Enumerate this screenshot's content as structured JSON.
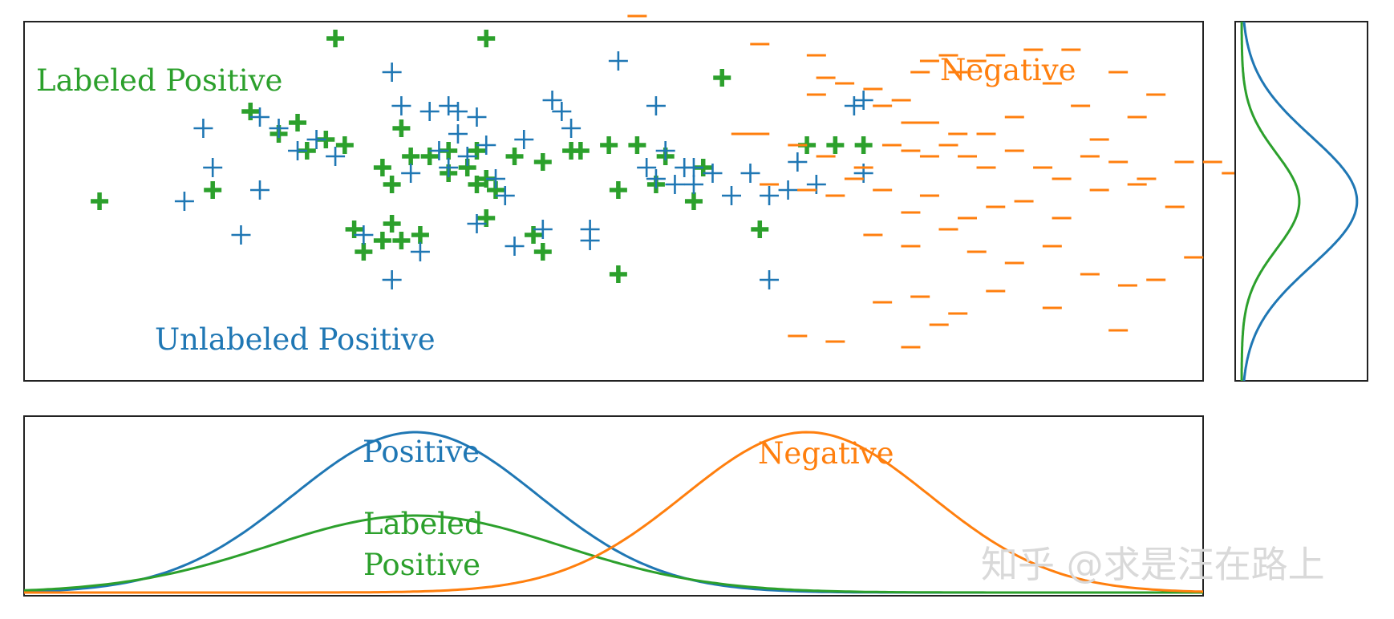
{
  "chart_data": [
    {
      "panel": "scatter",
      "type": "scatter",
      "title": "",
      "xlabel": "",
      "ylabel": "",
      "xlim": [
        -3,
        9.5
      ],
      "ylim": [
        -3.2,
        3.2
      ],
      "grid": false,
      "colors": {
        "labeled": "#2ca02c",
        "unlabeled": "#1f77b4",
        "negative": "#ff7f0e"
      },
      "annotations": {
        "labeled": "Labeled Positive",
        "unlabeled": "Unlabeled Positive",
        "negative": "Negative"
      },
      "series": [
        {
          "name": "Labeled Positive",
          "marker": "bold-plus",
          "points": [
            [
              -2.2,
              0.0
            ],
            [
              -1.0,
              0.2
            ],
            [
              -0.6,
              1.6
            ],
            [
              -0.3,
              1.2
            ],
            [
              -0.1,
              1.4
            ],
            [
              0.0,
              0.9
            ],
            [
              0.2,
              1.1
            ],
            [
              0.4,
              1.0
            ],
            [
              0.5,
              -0.5
            ],
            [
              0.8,
              0.6
            ],
            [
              1.0,
              1.3
            ],
            [
              0.6,
              -0.9
            ],
            [
              0.8,
              -0.7
            ],
            [
              0.9,
              0.3
            ],
            [
              0.9,
              -0.4
            ],
            [
              1.0,
              -0.7
            ],
            [
              1.1,
              0.8
            ],
            [
              1.2,
              -0.6
            ],
            [
              1.3,
              0.8
            ],
            [
              1.5,
              0.9
            ],
            [
              1.5,
              0.5
            ],
            [
              1.7,
              0.6
            ],
            [
              1.8,
              0.3
            ],
            [
              1.8,
              0.9
            ],
            [
              1.9,
              0.4
            ],
            [
              1.9,
              -0.3
            ],
            [
              2.0,
              0.2
            ],
            [
              2.2,
              0.8
            ],
            [
              2.4,
              -0.6
            ],
            [
              2.5,
              0.7
            ],
            [
              2.5,
              -0.9
            ],
            [
              2.8,
              0.9
            ],
            [
              2.9,
              0.9
            ],
            [
              3.2,
              1.0
            ],
            [
              3.3,
              0.2
            ],
            [
              3.3,
              -1.3
            ],
            [
              3.5,
              1.0
            ],
            [
              3.7,
              0.3
            ],
            [
              3.8,
              0.8
            ],
            [
              4.1,
              0.0
            ],
            [
              4.2,
              0.6
            ],
            [
              4.4,
              2.2
            ],
            [
              4.8,
              -0.5
            ],
            [
              5.3,
              1.0
            ],
            [
              5.6,
              1.0
            ],
            [
              5.9,
              1.0
            ],
            [
              0.3,
              2.9
            ],
            [
              1.9,
              2.9
            ]
          ]
        },
        {
          "name": "Unlabeled Positive",
          "marker": "plus",
          "points": [
            [
              -1.3,
              0.0
            ],
            [
              -1.1,
              1.3
            ],
            [
              -1.0,
              0.6
            ],
            [
              -0.7,
              -0.6
            ],
            [
              -0.5,
              1.5
            ],
            [
              -0.5,
              0.2
            ],
            [
              -0.3,
              1.3
            ],
            [
              -0.1,
              0.9
            ],
            [
              0.1,
              1.1
            ],
            [
              0.3,
              0.8
            ],
            [
              0.6,
              -0.6
            ],
            [
              0.9,
              -1.4
            ],
            [
              0.9,
              2.3
            ],
            [
              1.0,
              1.7
            ],
            [
              1.1,
              0.5
            ],
            [
              1.2,
              -0.9
            ],
            [
              1.3,
              1.6
            ],
            [
              1.4,
              0.9
            ],
            [
              1.5,
              1.7
            ],
            [
              1.6,
              1.2
            ],
            [
              1.8,
              1.5
            ],
            [
              1.8,
              -0.4
            ],
            [
              1.9,
              1.0
            ],
            [
              2.0,
              0.4
            ],
            [
              2.1,
              0.1
            ],
            [
              2.2,
              -0.8
            ],
            [
              2.3,
              1.1
            ],
            [
              2.5,
              -0.5
            ],
            [
              2.6,
              1.8
            ],
            [
              2.7,
              1.6
            ],
            [
              2.8,
              1.3
            ],
            [
              3.0,
              -0.5
            ],
            [
              3.3,
              2.5
            ],
            [
              3.6,
              0.6
            ],
            [
              3.7,
              1.7
            ],
            [
              3.7,
              0.4
            ],
            [
              3.8,
              0.9
            ],
            [
              3.9,
              0.3
            ],
            [
              4.0,
              0.6
            ],
            [
              4.1,
              0.3
            ],
            [
              4.1,
              0.6
            ],
            [
              4.3,
              0.5
            ],
            [
              4.5,
              0.1
            ],
            [
              4.7,
              0.5
            ],
            [
              4.9,
              0.1
            ],
            [
              4.9,
              -1.4
            ],
            [
              5.1,
              0.2
            ],
            [
              5.2,
              0.7
            ],
            [
              5.4,
              0.3
            ],
            [
              5.8,
              1.7
            ],
            [
              5.9,
              1.8
            ],
            [
              5.9,
              0.5
            ],
            [
              1.6,
              1.6
            ],
            [
              1.5,
              0.6
            ],
            [
              3.0,
              -0.7
            ],
            [
              1.7,
              0.8
            ]
          ]
        },
        {
          "name": "Negative",
          "marker": "dash",
          "points": [
            [
              3.5,
              3.3
            ],
            [
              4.8,
              2.8
            ],
            [
              5.4,
              2.6
            ],
            [
              5.5,
              2.2
            ],
            [
              5.7,
              2.1
            ],
            [
              5.4,
              1.9
            ],
            [
              6.0,
              2.0
            ],
            [
              6.1,
              1.7
            ],
            [
              6.3,
              1.8
            ],
            [
              6.5,
              2.3
            ],
            [
              6.6,
              2.5
            ],
            [
              6.8,
              2.6
            ],
            [
              6.9,
              2.3
            ],
            [
              7.1,
              2.5
            ],
            [
              7.3,
              2.6
            ],
            [
              7.7,
              2.7
            ],
            [
              6.4,
              1.4
            ],
            [
              6.6,
              1.4
            ],
            [
              6.9,
              1.2
            ],
            [
              7.2,
              1.2
            ],
            [
              7.5,
              1.5
            ],
            [
              7.9,
              2.1
            ],
            [
              8.2,
              1.7
            ],
            [
              8.4,
              1.1
            ],
            [
              8.6,
              2.3
            ],
            [
              9.0,
              1.9
            ],
            [
              4.6,
              1.2
            ],
            [
              4.8,
              1.2
            ],
            [
              5.2,
              1.0
            ],
            [
              5.5,
              0.8
            ],
            [
              5.9,
              0.6
            ],
            [
              6.2,
              1.0
            ],
            [
              6.4,
              0.9
            ],
            [
              6.6,
              0.8
            ],
            [
              6.8,
              1.0
            ],
            [
              7.0,
              0.8
            ],
            [
              7.2,
              0.6
            ],
            [
              7.5,
              0.9
            ],
            [
              7.8,
              0.6
            ],
            [
              8.0,
              0.4
            ],
            [
              8.3,
              0.8
            ],
            [
              8.6,
              0.7
            ],
            [
              8.9,
              0.4
            ],
            [
              9.3,
              0.7
            ],
            [
              9.6,
              0.7
            ],
            [
              9.8,
              0.5
            ],
            [
              5.8,
              0.4
            ],
            [
              6.1,
              0.2
            ],
            [
              6.4,
              -0.2
            ],
            [
              6.6,
              0.1
            ],
            [
              7.0,
              -0.3
            ],
            [
              7.3,
              -0.1
            ],
            [
              7.6,
              0.0
            ],
            [
              8.0,
              -0.3
            ],
            [
              8.4,
              0.2
            ],
            [
              8.8,
              0.3
            ],
            [
              9.2,
              -0.1
            ],
            [
              4.9,
              0.3
            ],
            [
              5.3,
              0.2
            ],
            [
              5.6,
              0.1
            ],
            [
              6.0,
              -0.6
            ],
            [
              6.4,
              -0.8
            ],
            [
              6.8,
              -0.5
            ],
            [
              7.1,
              -0.9
            ],
            [
              7.5,
              -1.1
            ],
            [
              7.9,
              -0.8
            ],
            [
              8.3,
              -1.3
            ],
            [
              8.7,
              -1.5
            ],
            [
              9.0,
              -1.4
            ],
            [
              6.1,
              -1.8
            ],
            [
              6.5,
              -1.7
            ],
            [
              6.7,
              -2.2
            ],
            [
              6.9,
              -2.0
            ],
            [
              7.3,
              -1.6
            ],
            [
              7.9,
              -1.9
            ],
            [
              8.6,
              -2.3
            ],
            [
              5.2,
              -2.4
            ],
            [
              5.6,
              -2.5
            ],
            [
              6.4,
              -2.6
            ],
            [
              9.4,
              -1.0
            ],
            [
              8.8,
              1.5
            ],
            [
              8.1,
              2.7
            ]
          ]
        }
      ]
    },
    {
      "panel": "x-density",
      "type": "line",
      "title": "",
      "xlabel": "",
      "ylabel": "",
      "xlim": [
        -3,
        9.5
      ],
      "ylim": [
        0,
        1.05
      ],
      "grid": false,
      "annotations": {
        "positive": "Positive",
        "negative": "Negative",
        "labeled_line1": "Labeled",
        "labeled_line2": "Positive"
      },
      "series": [
        {
          "name": "Positive",
          "color": "#1f77b4",
          "mean": 1.15,
          "sd": 1.3,
          "peak": 1.0
        },
        {
          "name": "Labeled Positive",
          "color": "#2ca02c",
          "mean": 1.15,
          "sd": 1.55,
          "peak": 0.48
        },
        {
          "name": "Negative",
          "color": "#ff7f0e",
          "mean": 5.3,
          "sd": 1.3,
          "peak": 1.0
        }
      ]
    },
    {
      "panel": "y-density",
      "type": "line",
      "title": "",
      "xlabel": "",
      "ylabel": "",
      "ylim": [
        -3.2,
        3.2
      ],
      "xlim": [
        0,
        1.05
      ],
      "grid": false,
      "series": [
        {
          "name": "Positive",
          "color": "#1f77b4",
          "mean": 0,
          "sd": 1.15,
          "peak": 1.0
        },
        {
          "name": "Labeled Positive",
          "color": "#2ca02c",
          "mean": 0,
          "sd": 0.85,
          "peak": 0.5
        }
      ]
    }
  ],
  "watermark": "知乎 @求是汪在路上"
}
